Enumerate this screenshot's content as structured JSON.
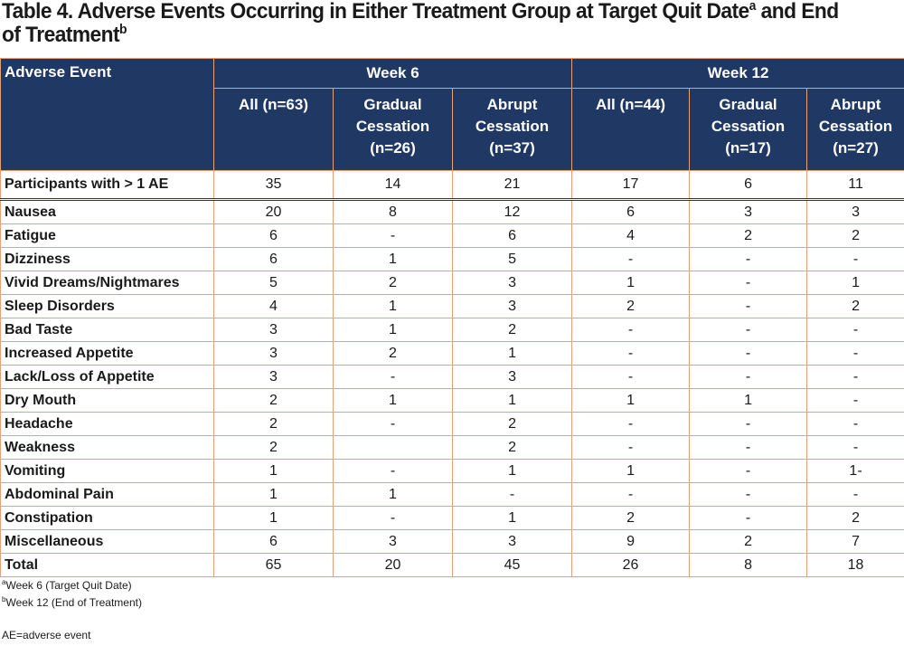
{
  "title": {
    "text_a": "Table 4. Adverse Events Occurring in Either Treatment Group at Target Quit Date",
    "sup_a": "a",
    "text_b": " and End of Treatment",
    "sup_b": "b"
  },
  "table": {
    "corner_header": "Adverse Event",
    "groups": [
      "Week 6",
      "Week 12"
    ],
    "subheaders": [
      [
        "All (n=63)"
      ],
      [
        "Gradual",
        "Cessation",
        "(n=26)"
      ],
      [
        "Abrupt",
        "Cessation",
        "(n=37)"
      ],
      [
        "All (n=44)"
      ],
      [
        "Gradual",
        "Cessation",
        "(n=17)"
      ],
      [
        "Abrupt",
        "Cessation",
        "(n=27)"
      ]
    ],
    "rows": [
      {
        "label": "Participants with > 1 AE",
        "values": [
          "35",
          "14",
          "21",
          "17",
          "6",
          "11"
        ]
      },
      {
        "label": "Nausea",
        "values": [
          "20",
          "8",
          "12",
          "6",
          "3",
          "3"
        ]
      },
      {
        "label": "Fatigue",
        "values": [
          "6",
          "-",
          "6",
          "4",
          "2",
          "2"
        ]
      },
      {
        "label": "Dizziness",
        "values": [
          "6",
          "1",
          "5",
          "-",
          "-",
          "-"
        ]
      },
      {
        "label": "Vivid Dreams/Nightmares",
        "values": [
          "5",
          "2",
          "3",
          "1",
          "-",
          "1"
        ]
      },
      {
        "label": "Sleep Disorders",
        "values": [
          "4",
          "1",
          "3",
          "2",
          "-",
          "2"
        ]
      },
      {
        "label": "Bad Taste",
        "values": [
          "3",
          "1",
          "2",
          "-",
          "-",
          "-"
        ]
      },
      {
        "label": "Increased Appetite",
        "values": [
          "3",
          "2",
          "1",
          "-",
          "-",
          "-"
        ]
      },
      {
        "label": "Lack/Loss of Appetite",
        "values": [
          "3",
          "-",
          "3",
          "-",
          "-",
          "-"
        ]
      },
      {
        "label": "Dry Mouth",
        "values": [
          "2",
          "1",
          "1",
          "1",
          "1",
          "-"
        ]
      },
      {
        "label": "Headache",
        "values": [
          "2",
          "-",
          "2",
          "-",
          "-",
          "-"
        ]
      },
      {
        "label": "Weakness",
        "values": [
          "2",
          "",
          "2",
          "-",
          "-",
          "-"
        ]
      },
      {
        "label": "Vomiting",
        "values": [
          "1",
          "-",
          "1",
          "1",
          "-",
          "1-"
        ]
      },
      {
        "label": "Abdominal Pain",
        "values": [
          "1",
          "1",
          "-",
          "-",
          "-",
          "-"
        ]
      },
      {
        "label": "Constipation",
        "values": [
          "1",
          "-",
          "1",
          "2",
          "-",
          "2"
        ]
      },
      {
        "label": "Miscellaneous",
        "values": [
          "6",
          "3",
          "3",
          "9",
          "2",
          "7"
        ]
      },
      {
        "label": "Total",
        "values": [
          "65",
          "20",
          "45",
          "26",
          "8",
          "18"
        ]
      }
    ]
  },
  "footnotes": {
    "a_mark": "a",
    "a_text": "Week 6 (Target Quit Date)",
    "b_mark": "b",
    "b_text": "Week 12 (End of Treatment)",
    "abbrev": "AE=adverse event"
  },
  "colors": {
    "header_bg": "#1f3864",
    "header_text": "#ffffff",
    "cell_border": "#e8a077"
  }
}
